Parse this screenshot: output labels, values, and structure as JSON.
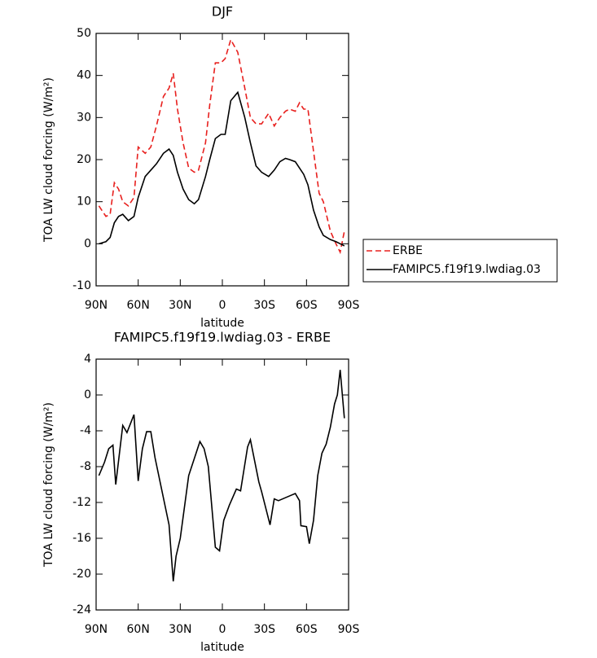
{
  "chart_data": [
    {
      "type": "line",
      "title": "DJF",
      "xlabel": "latitude",
      "ylabel": "TOA LW cloud forcing (W/m²)",
      "x": [
        88,
        83,
        80,
        77,
        74,
        71,
        67,
        63,
        60,
        55,
        51,
        47,
        42,
        38,
        35,
        32,
        28,
        24,
        20,
        17,
        12,
        9,
        5,
        1,
        -2,
        -6,
        -11,
        -16,
        -20,
        -24,
        -28,
        -33,
        -37,
        -41,
        -45,
        -48,
        -52,
        -55,
        -58,
        -61,
        -65,
        -69,
        -72,
        -77,
        -81,
        -84,
        -87
      ],
      "series": [
        {
          "name": "ERBE",
          "color": "#e8201e",
          "linestyle": "dashed",
          "values": [
            9,
            6.5,
            7,
            14.5,
            13,
            10,
            9,
            11,
            23,
            21.5,
            23,
            28,
            35,
            37,
            40.5,
            32,
            24,
            18,
            17,
            17.5,
            24,
            33,
            43,
            43,
            44,
            48.5,
            45.5,
            37,
            30,
            28.5,
            28.5,
            31,
            28,
            30,
            31.5,
            32,
            31.5,
            33.5,
            32,
            32,
            22,
            12,
            10,
            3,
            0,
            -2,
            3
          ]
        },
        {
          "name": "FAMIPC5.f19f19.lwdiag.03",
          "color": "#000000",
          "linestyle": "solid",
          "values": [
            0,
            0.5,
            1.5,
            5,
            6.5,
            7,
            5.5,
            6.5,
            11,
            16,
            17.5,
            19,
            21.5,
            22.5,
            21,
            17,
            13,
            10.5,
            9.5,
            10.5,
            16,
            20,
            25,
            26,
            26,
            34,
            36,
            30,
            24,
            18.5,
            17,
            16,
            17.5,
            19.5,
            20.3,
            20,
            19.5,
            18,
            16.5,
            14,
            8,
            4,
            2,
            1,
            0.5,
            0,
            -0.5
          ]
        }
      ],
      "xlim": [
        90,
        -90
      ],
      "xticks": [
        {
          "value": 90,
          "label": "90N"
        },
        {
          "value": 60,
          "label": "60N"
        },
        {
          "value": 30,
          "label": "30N"
        },
        0,
        {
          "value": -30,
          "label": "30S"
        },
        {
          "value": -60,
          "label": "60S"
        },
        {
          "value": -90,
          "label": "90S"
        }
      ],
      "ylim": [
        -10,
        50
      ],
      "yticks": [
        -10,
        0,
        10,
        20,
        30,
        40,
        50
      ]
    },
    {
      "type": "line",
      "title": "FAMIPC5.f19f19.lwdiag.03 - ERBE",
      "xlabel": "latitude",
      "ylabel": "TOA LW cloud forcing (W/m²)",
      "x": [
        88,
        84,
        81,
        78,
        76,
        71,
        68,
        63,
        60,
        57,
        54,
        51,
        48,
        38,
        35,
        33,
        30,
        24,
        16,
        13,
        10,
        5,
        2,
        -1,
        -5,
        -10,
        -13,
        -18,
        -20,
        -26,
        -28,
        -34,
        -37,
        -40,
        -49,
        -52,
        -55,
        -56,
        -60,
        -62,
        -65,
        -68,
        -71,
        -74,
        -77,
        -80,
        -82,
        -84,
        -87
      ],
      "values": [
        -9,
        -7.5,
        -6,
        -5.6,
        -10,
        -3.4,
        -4.2,
        -2.2,
        -9.6,
        -6,
        -4.1,
        -4.1,
        -7,
        -14.5,
        -20.8,
        -18,
        -16,
        -9,
        -5.2,
        -6,
        -8,
        -17,
        -17.4,
        -14,
        -12.3,
        -10.5,
        -10.7,
        -5.8,
        -5,
        -9.7,
        -10.8,
        -14.5,
        -11.6,
        -11.8,
        -11.2,
        -11,
        -11.8,
        -14.6,
        -14.7,
        -16.6,
        -14,
        -9,
        -6.5,
        -5.5,
        -3.6,
        -1,
        0,
        2.8,
        -2.6
      ],
      "color": "#000000",
      "xlim": [
        90,
        -90
      ],
      "xticks": [
        {
          "value": 90,
          "label": "90N"
        },
        {
          "value": 60,
          "label": "60N"
        },
        {
          "value": 30,
          "label": "30N"
        },
        0,
        {
          "value": -30,
          "label": "30S"
        },
        {
          "value": -60,
          "label": "60S"
        },
        {
          "value": -90,
          "label": "90S"
        }
      ],
      "ylim": [
        -24,
        4
      ],
      "yticks": [
        -24,
        -20,
        -16,
        -12,
        -8,
        -4,
        0,
        4
      ]
    }
  ]
}
